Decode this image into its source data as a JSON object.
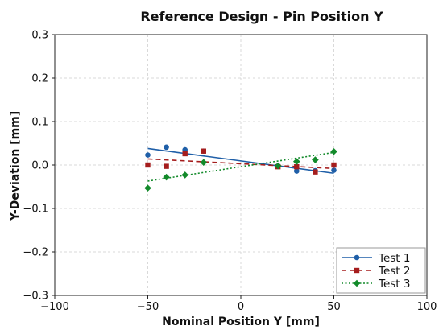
{
  "chart_data": {
    "type": "scatter",
    "title": "Reference Design - Pin Position Y",
    "xlabel": "Nominal Position Y [mm]",
    "ylabel": "Y-Deviation [mm]",
    "xlim": [
      -100,
      100
    ],
    "ylim": [
      -0.3,
      0.3
    ],
    "xticks": [
      -100,
      -50,
      0,
      50,
      100
    ],
    "yticks": [
      -0.3,
      -0.2,
      -0.1,
      0.0,
      0.1,
      0.2,
      0.3
    ],
    "xtick_labels": [
      "−100",
      "−50",
      "0",
      "50",
      "100"
    ],
    "ytick_labels": [
      "−0.3",
      "−0.2",
      "−0.1",
      "0.0",
      "0.1",
      "0.2",
      "0.3"
    ],
    "grid": true,
    "legend_position": "bottom-right",
    "series": [
      {
        "name": "Test 1",
        "color": "#1f5fa8",
        "marker": "circle",
        "line_style": "solid",
        "x": [
          -50,
          -40,
          -30,
          -20,
          20,
          30,
          40,
          50
        ],
        "y": [
          0.023,
          0.041,
          0.035,
          0.032,
          -0.002,
          -0.014,
          -0.013,
          -0.012
        ],
        "fit": {
          "x": [
            -50,
            50
          ],
          "y": [
            0.038,
            -0.019
          ]
        }
      },
      {
        "name": "Test 2",
        "color": "#a51d1d",
        "marker": "square",
        "line_style": "dashed",
        "x": [
          -50,
          -40,
          -30,
          -20,
          20,
          30,
          40,
          50
        ],
        "y": [
          0.0,
          -0.003,
          0.026,
          0.032,
          -0.004,
          -0.004,
          -0.016,
          0.0
        ],
        "fit": {
          "x": [
            -50,
            50
          ],
          "y": [
            0.014,
            -0.008
          ]
        }
      },
      {
        "name": "Test 3",
        "color": "#128a2a",
        "marker": "diamond",
        "line_style": "dotted",
        "x": [
          -50,
          -40,
          -30,
          -20,
          20,
          30,
          40,
          50
        ],
        "y": [
          -0.053,
          -0.028,
          -0.023,
          0.006,
          -0.002,
          0.008,
          0.012,
          0.031
        ],
        "fit": {
          "x": [
            -50,
            50
          ],
          "y": [
            -0.037,
            0.029
          ]
        }
      }
    ]
  }
}
